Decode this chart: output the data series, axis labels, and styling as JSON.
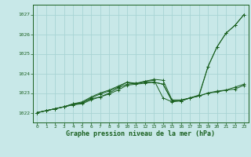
{
  "title": "Graphe pression niveau de la mer (hPa)",
  "bg_color": "#c8e8e8",
  "grid_color": "#a8d4d4",
  "line_color": "#1a6020",
  "xlim": [
    -0.5,
    23.5
  ],
  "ylim": [
    1021.5,
    1027.5
  ],
  "yticks": [
    1022,
    1023,
    1024,
    1025,
    1026,
    1027
  ],
  "xticks": [
    0,
    1,
    2,
    3,
    4,
    5,
    6,
    7,
    8,
    9,
    10,
    11,
    12,
    13,
    14,
    15,
    16,
    17,
    18,
    19,
    20,
    21,
    22,
    23
  ],
  "series": [
    [
      1022.0,
      1022.1,
      1022.2,
      1022.3,
      1022.45,
      1022.55,
      1022.8,
      1023.0,
      1023.15,
      1023.35,
      1023.55,
      1023.5,
      1023.6,
      1023.7,
      1023.65,
      1022.65,
      1022.65,
      1022.75,
      1022.85,
      1023.0,
      1023.1,
      1023.15,
      1023.2,
      1023.4
    ],
    [
      1022.0,
      1022.1,
      1022.2,
      1022.3,
      1022.45,
      1022.5,
      1022.75,
      1022.95,
      1023.1,
      1023.3,
      1023.55,
      1023.45,
      1023.6,
      1023.65,
      1022.75,
      1022.55,
      1022.6,
      1022.75,
      1022.9,
      1024.35,
      1025.35,
      1026.05,
      1026.45,
      1027.0
    ],
    [
      1022.0,
      1022.1,
      1022.2,
      1022.3,
      1022.4,
      1022.5,
      1022.7,
      1022.8,
      1023.0,
      1023.25,
      1023.45,
      1023.5,
      1023.55,
      1023.55,
      1023.45,
      1022.6,
      1022.6,
      1022.75,
      1022.85,
      1023.0,
      1023.05,
      1023.15,
      1023.3,
      1023.45
    ],
    [
      1022.0,
      1022.1,
      1022.2,
      1022.3,
      1022.4,
      1022.45,
      1022.65,
      1022.8,
      1022.95,
      1023.15,
      1023.4,
      1023.45,
      1023.5,
      1023.55,
      1023.45,
      1022.6,
      1022.6,
      1022.75,
      1022.85,
      1024.35,
      1025.35,
      1026.05,
      1026.45,
      1027.0
    ]
  ]
}
